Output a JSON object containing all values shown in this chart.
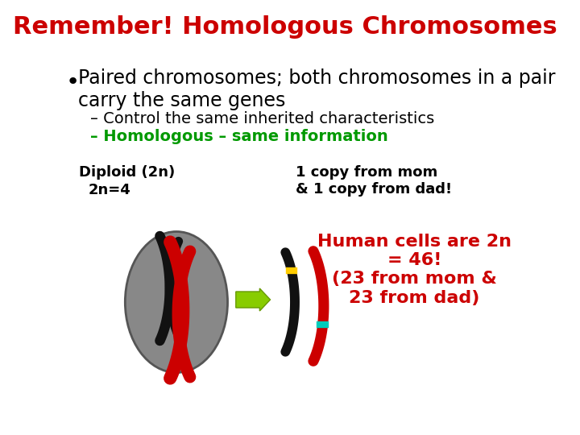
{
  "title": "Remember! Homologous Chromosomes",
  "title_color": "#cc0000",
  "title_fontsize": 22,
  "bullet1": "Paired chromosomes; both chromosomes in a pair\ncarry the same genes",
  "bullet1_color": "#000000",
  "bullet1_fontsize": 17,
  "sub1": "Control the same inherited characteristics",
  "sub1_color": "#000000",
  "sub1_fontsize": 14,
  "sub2": " Homologous – same information",
  "sub2_color": "#009900",
  "sub2_fontsize": 14,
  "diploid_label": "Diploid (2n)",
  "diploid_label2": "2n=4",
  "copy_label": "1 copy from mom\n& 1 copy from dad!",
  "human_label": "Human cells are 2n\n= 46!\n(23 from mom &\n23 from dad)",
  "human_label_color": "#cc0000",
  "cell_color": "#888888",
  "chrom_black": "#111111",
  "chrom_red": "#cc0000",
  "arrow_color": "#88cc00",
  "background_color": "#ffffff"
}
